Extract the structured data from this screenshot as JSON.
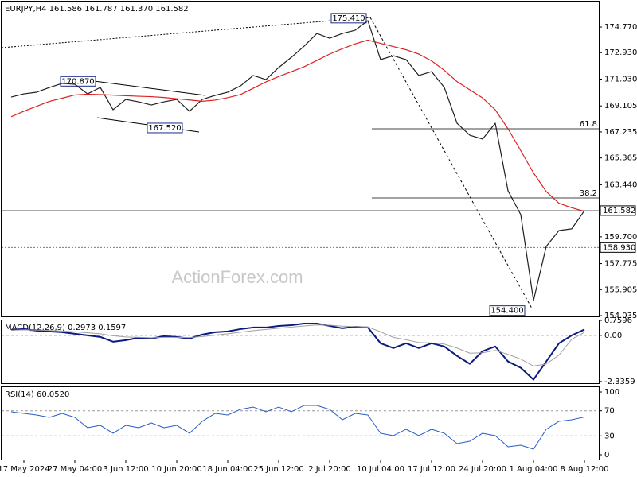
{
  "chart_data": [
    {
      "type": "line",
      "title": "EURJPY,H4  161.586 161.787 161.370 161.582",
      "watermark": "ActionForex.com",
      "ylim": [
        153.98,
        176.6
      ],
      "yticks": [
        {
          "value": 174.77,
          "label": "174.770"
        },
        {
          "value": 172.93,
          "label": "172.930"
        },
        {
          "value": 171.03,
          "label": "171.030"
        },
        {
          "value": 169.105,
          "label": "169.105"
        },
        {
          "value": 167.235,
          "label": "167.235"
        },
        {
          "value": 165.365,
          "label": "165.365"
        },
        {
          "value": 163.44,
          "label": "163.440"
        },
        {
          "value": 159.7,
          "label": "159.700"
        },
        {
          "value": 157.775,
          "label": "157.775"
        },
        {
          "value": 155.905,
          "label": "155.905"
        },
        {
          "value": 154.035,
          "label": "154.035"
        }
      ],
      "series": [
        {
          "color": "#202020",
          "values": [
            169.74,
            169.97,
            170.09,
            170.43,
            170.72,
            170.66,
            169.97,
            170.43,
            168.83,
            169.57,
            169.4,
            169.17,
            169.4,
            169.57,
            168.72,
            169.57,
            169.86,
            170.09,
            170.54,
            171.29,
            171.0,
            171.86,
            172.6,
            173.4,
            174.31,
            173.97,
            174.31,
            174.54,
            175.23,
            172.43,
            172.71,
            172.43,
            171.29,
            171.57,
            170.43,
            167.86,
            167.0,
            166.72,
            167.86,
            163.01,
            161.29,
            155.13,
            159.01,
            160.15,
            160.27,
            161.58
          ]
        },
        {
          "color": "#e02020",
          "values": [
            168.33,
            168.72,
            169.08,
            169.43,
            169.66,
            169.89,
            169.95,
            169.92,
            169.88,
            169.84,
            169.8,
            169.77,
            169.71,
            169.62,
            169.53,
            169.44,
            169.52,
            169.7,
            169.92,
            170.37,
            170.83,
            171.22,
            171.56,
            171.92,
            172.37,
            172.83,
            173.21,
            173.56,
            173.83,
            173.6,
            173.37,
            173.14,
            172.83,
            172.34,
            171.66,
            170.85,
            170.26,
            169.68,
            168.83,
            167.46,
            165.89,
            164.29,
            162.95,
            162.11,
            161.79,
            161.53
          ]
        }
      ],
      "price_labels": [
        {
          "value": 175.41,
          "label": "175.410"
        },
        {
          "value": 170.87,
          "label": "170.870"
        },
        {
          "value": 167.52,
          "label": "167.520"
        },
        {
          "value": 154.4,
          "label": "154.400"
        }
      ],
      "fib_levels": [
        {
          "level": 61.8,
          "price": 167.46
        },
        {
          "level": 38.2,
          "price": 162.49
        }
      ],
      "hlines": [
        {
          "value": 161.582,
          "label": "161.582",
          "style": "solid"
        },
        {
          "value": 158.93,
          "label": "158.930",
          "style": "dotted"
        }
      ]
    },
    {
      "type": "line",
      "title": "MACD(12,26,9) 0.2973 0.1597",
      "ylim": [
        -2.42,
        0.7596
      ],
      "yticks": [
        0.7596,
        {
          "value": 0,
          "label": "0.00"
        },
        -2.3359
      ],
      "levels": [
        0
      ],
      "series": [
        {
          "color": "#0c1a80",
          "width": 2,
          "values": [
            0.28,
            0.32,
            0.24,
            0.2,
            0.16,
            0.08,
            0,
            -0.08,
            -0.32,
            -0.24,
            -0.12,
            -0.16,
            -0.04,
            -0.08,
            -0.16,
            0.04,
            0.16,
            0.2,
            0.32,
            0.4,
            0.4,
            0.48,
            0.52,
            0.6,
            0.6,
            0.48,
            0.36,
            0.44,
            0.4,
            -0.4,
            -0.64,
            -0.4,
            -0.64,
            -0.4,
            -0.56,
            -1.04,
            -1.44,
            -0.8,
            -0.56,
            -1.32,
            -1.64,
            -2.24,
            -1.32,
            -0.4,
            0,
            0.3
          ]
        },
        {
          "color": "#a0a0a0",
          "width": 1,
          "values": [
            0.26,
            0.28,
            0.27,
            0.25,
            0.22,
            0.18,
            0.13,
            0.08,
            -0.02,
            -0.08,
            -0.1,
            -0.12,
            -0.1,
            -0.1,
            -0.11,
            -0.06,
            0.01,
            0.08,
            0.16,
            0.24,
            0.3,
            0.36,
            0.42,
            0.48,
            0.53,
            0.52,
            0.47,
            0.45,
            0.43,
            0.18,
            -0.1,
            -0.22,
            -0.36,
            -0.38,
            -0.44,
            -0.64,
            -0.9,
            -0.88,
            -0.76,
            -0.96,
            -1.2,
            -1.55,
            -1.45,
            -1.0,
            -0.2,
            0.16
          ]
        }
      ]
    },
    {
      "type": "line",
      "title": "RSI(14) 60.0520",
      "ylim": [
        -7.6,
        107.6
      ],
      "yticks": [
        100,
        70,
        30,
        0
      ],
      "levels": [
        70,
        30
      ],
      "categories": [
        null,
        "17 May 2024",
        null,
        null,
        null,
        "27 May 04:00",
        null,
        null,
        null,
        "3 Jun 12:00",
        null,
        null,
        null,
        "10 Jun 20:00",
        null,
        null,
        null,
        "18 Jun 04:00",
        null,
        null,
        null,
        "25 Jun 12:00",
        null,
        null,
        null,
        "2 Jul 20:00",
        null,
        null,
        null,
        "10 Jul 04:00",
        null,
        null,
        null,
        "17 Jul 12:00",
        null,
        null,
        null,
        "24 Jul 20:00",
        null,
        null,
        null,
        "1 Aug 04:00",
        null,
        null,
        null,
        "8 Aug 12:00"
      ],
      "series": [
        {
          "color": "#2a5cc8",
          "width": 1,
          "values": [
            68.4,
            65.8,
            63.3,
            59.5,
            65.8,
            59.5,
            43,
            46.8,
            34.2,
            46.8,
            43,
            50.6,
            43,
            46.8,
            34.2,
            53.2,
            65.8,
            63.3,
            72.2,
            75.9,
            68.4,
            75.9,
            68.4,
            78.5,
            78.5,
            72.2,
            55.7,
            65.8,
            63.3,
            34.2,
            30.4,
            40.5,
            30.4,
            40.5,
            34.2,
            17.7,
            21.5,
            34.2,
            30.4,
            12.7,
            15.2,
            8.9,
            40.5,
            53.2,
            55.7,
            60.05
          ]
        }
      ]
    }
  ]
}
